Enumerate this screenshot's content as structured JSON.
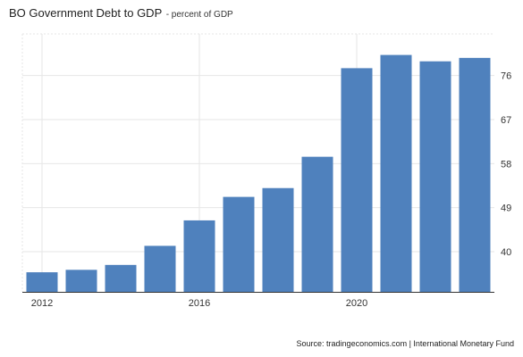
{
  "title": "BO Government Debt to GDP",
  "subtitle": "- percent of GDP",
  "source": "Source: tradingeconomics.com | International Monetary Fund",
  "colors": {
    "bar": "#4f81bd",
    "grid": "#e6e6e6",
    "axis": "#333333"
  },
  "chart_data": {
    "type": "bar",
    "categories": [
      "2012",
      "2013",
      "2014",
      "2015",
      "2016",
      "2017",
      "2018",
      "2019",
      "2020",
      "2021",
      "2022",
      "2023"
    ],
    "values": [
      35.8,
      36.3,
      37.3,
      41.2,
      46.4,
      51.2,
      53,
      59.4,
      77.5,
      80.2,
      78.9,
      79.6
    ],
    "x_tick_labels": [
      "2012",
      "2016",
      "2020"
    ],
    "y_ticks": [
      40,
      49,
      58,
      67,
      76
    ],
    "ylim": [
      31.8,
      84.5
    ],
    "y_axis_position": "right",
    "grid": true
  }
}
